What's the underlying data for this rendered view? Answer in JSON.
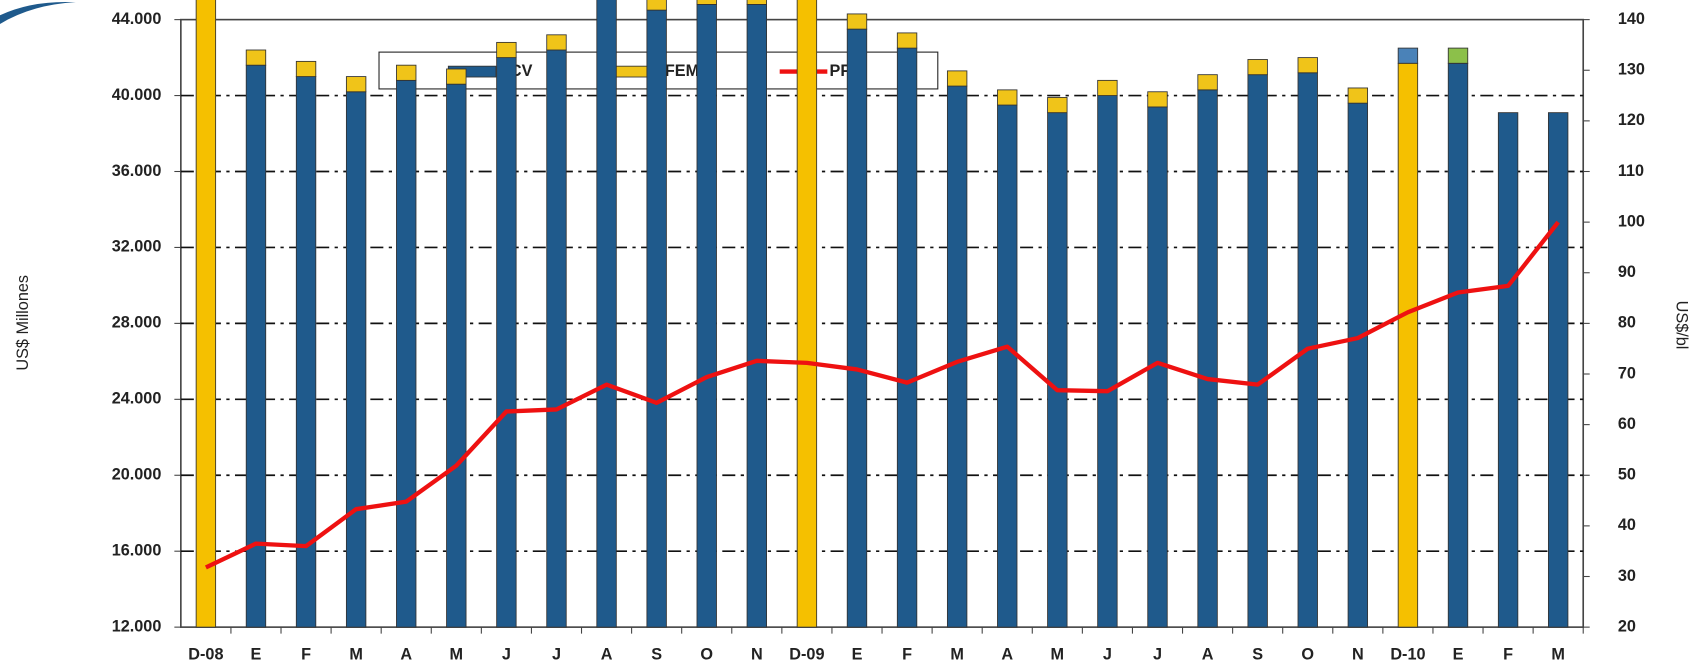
{
  "chart_data": {
    "type": "bar",
    "categories": [
      "D-08",
      "E",
      "F",
      "M",
      "A",
      "M",
      "J",
      "J",
      "A",
      "S",
      "O",
      "N",
      "D-09",
      "E",
      "F",
      "M",
      "A",
      "M",
      "J",
      "J",
      "A",
      "S",
      "O",
      "N",
      "D-10",
      "E",
      "F",
      "M"
    ],
    "ylabel": "US$ Millones",
    "y2label": "US$/bl",
    "ylim": [
      12000,
      44000
    ],
    "yticks": [
      {
        "value": 12000,
        "label": "12.000"
      },
      {
        "value": 16000,
        "label": "16.000"
      },
      {
        "value": 20000,
        "label": "20.000"
      },
      {
        "value": 24000,
        "label": "24.000"
      },
      {
        "value": 28000,
        "label": "28.000"
      },
      {
        "value": 32000,
        "label": "32.000"
      },
      {
        "value": 36000,
        "label": "36.000"
      },
      {
        "value": 40000,
        "label": "40.000"
      },
      {
        "value": 44000,
        "label": "44.000"
      }
    ],
    "y2lim": [
      20,
      140
    ],
    "y2ticks": [
      20,
      30,
      40,
      50,
      60,
      70,
      80,
      90,
      100,
      110,
      120,
      130,
      140
    ],
    "grid": true,
    "stacked": true,
    "series": [
      {
        "name": "BCV",
        "color": "#1f5a8c",
        "colors": [
          "#f5c000",
          "#1f5a8c",
          "#1f5a8c",
          "#1f5a8c",
          "#1f5a8c",
          "#1f5a8c",
          "#1f5a8c",
          "#1f5a8c",
          "#1f5a8c",
          "#1f5a8c",
          "#1f5a8c",
          "#1f5a8c",
          "#f5c000",
          "#1f5a8c",
          "#1f5a8c",
          "#1f5a8c",
          "#1f5a8c",
          "#1f5a8c",
          "#1f5a8c",
          "#1f5a8c",
          "#1f5a8c",
          "#1f5a8c",
          "#1f5a8c",
          "#1f5a8c",
          "#f5c000",
          "#1f5a8c",
          "#1f5a8c",
          "#1f5a8c"
        ],
        "values": [
          42400,
          29600,
          29000,
          28200,
          28800,
          28600,
          30000,
          30400,
          33400,
          32500,
          32800,
          32800,
          35200,
          31500,
          30500,
          28500,
          27500,
          27100,
          28000,
          27400,
          28300,
          29100,
          29200,
          27600,
          29700,
          29700,
          27100,
          27100
        ]
      },
      {
        "name": "FEM",
        "color": "#f0c419",
        "colors": [
          "#8cc04a",
          "#f0c419",
          "#f0c419",
          "#f0c419",
          "#f0c419",
          "#f0c419",
          "#f0c419",
          "#f0c419",
          "#f0c419",
          "#f0c419",
          "#f0c419",
          "#f0c419",
          "#8cc04a",
          "#f0c419",
          "#f0c419",
          "#f0c419",
          "#f0c419",
          "#f0c419",
          "#f0c419",
          "#f0c419",
          "#f0c419",
          "#f0c419",
          "#f0c419",
          "#f0c419",
          "#4a82b8",
          "#8cc04a",
          "#f0c419",
          "#f0c419"
        ],
        "values": [
          800,
          800,
          800,
          800,
          800,
          800,
          800,
          800,
          800,
          800,
          800,
          800,
          800,
          800,
          800,
          800,
          800,
          800,
          800,
          800,
          800,
          800,
          800,
          800,
          800,
          800,
          0,
          0
        ]
      },
      {
        "name": "PPV",
        "type": "line",
        "axis": "y2",
        "color": "#ee1111",
        "values": [
          31.8,
          36.5,
          36,
          43.3,
          44.8,
          51.9,
          62.6,
          63,
          67.9,
          64.3,
          69.4,
          72.6,
          72.2,
          70.9,
          68.3,
          72.4,
          75.4,
          66.8,
          66.6,
          72.2,
          69,
          67.9,
          75,
          77.1,
          82.2,
          86.1,
          87.4,
          100
        ]
      }
    ]
  }
}
